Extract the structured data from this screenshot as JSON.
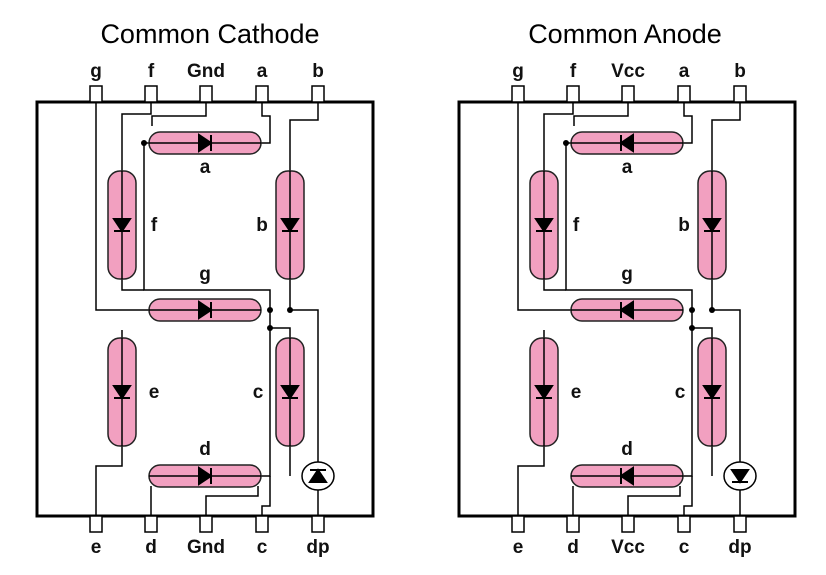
{
  "panels": [
    {
      "id": "cathode",
      "title": "Common Cathode",
      "top_pins": [
        "g",
        "f",
        "Gnd",
        "a",
        "b"
      ],
      "bottom_pins": [
        "e",
        "d",
        "Gnd",
        "c",
        "dp"
      ],
      "segment_labels": {
        "a": "a",
        "b": "b",
        "c": "c",
        "d": "d",
        "e": "e",
        "f": "f",
        "g": "g"
      },
      "diode_orientation": "cathode"
    },
    {
      "id": "anode",
      "title": "Common Anode",
      "top_pins": [
        "g",
        "f",
        "Vcc",
        "a",
        "b"
      ],
      "bottom_pins": [
        "e",
        "d",
        "Vcc",
        "c",
        "dp"
      ],
      "segment_labels": {
        "a": "a",
        "b": "b",
        "c": "c",
        "d": "d",
        "e": "e",
        "f": "f",
        "g": "g"
      },
      "diode_orientation": "anode"
    }
  ],
  "colors": {
    "segment": "#f2a0c0",
    "wire": "#000000",
    "frame": "#000000"
  }
}
